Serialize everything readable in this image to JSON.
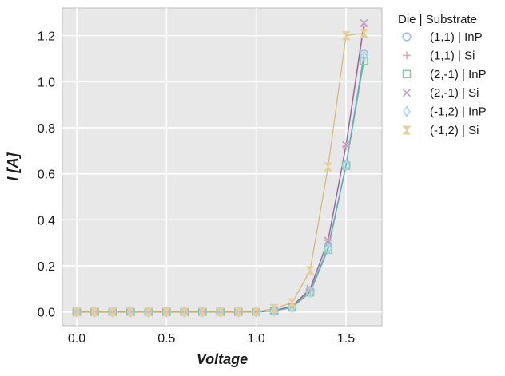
{
  "chart_data": {
    "type": "line",
    "xlabel": "Voltage",
    "ylabel": "I [A]",
    "xlim": [
      -0.08,
      1.7
    ],
    "ylim": [
      -0.06,
      1.32
    ],
    "xticks": [
      0.0,
      0.5,
      1.0,
      1.5
    ],
    "xtick_labels": [
      "0.0",
      "0.5",
      "1.0",
      "1.5"
    ],
    "yticks": [
      0.0,
      0.2,
      0.4,
      0.6,
      0.8,
      1.0,
      1.2
    ],
    "ytick_labels": [
      "0.0",
      "0.2",
      "0.4",
      "0.6",
      "0.8",
      "1.0",
      "1.2"
    ],
    "grid": true,
    "background": "#e8e8e8",
    "legend_title": "Die | Substrate",
    "legend_position": "outside-right",
    "x": [
      0.0,
      0.1,
      0.2,
      0.3,
      0.4,
      0.5,
      0.6,
      0.7,
      0.8,
      0.9,
      1.0,
      1.1,
      1.2,
      1.3,
      1.4,
      1.5,
      1.6
    ],
    "series": [
      {
        "name": "(1,1) | InP",
        "marker": "circle",
        "color": "#9ec3d8",
        "values": [
          0,
          0,
          0,
          0,
          0,
          0,
          0,
          0,
          0,
          0,
          0,
          0.005,
          0.02,
          0.09,
          0.28,
          0.64,
          1.12
        ]
      },
      {
        "name": "(1,1) | Si",
        "marker": "plus",
        "color": "#e8a8a8",
        "values": [
          0,
          0,
          0,
          0,
          0,
          0,
          0,
          0,
          0,
          0,
          0,
          0.006,
          0.025,
          0.095,
          0.31,
          0.72,
          1.24
        ]
      },
      {
        "name": "(2,-1) | InP",
        "marker": "square",
        "color": "#8fc9a8",
        "values": [
          0,
          0,
          0,
          0,
          0,
          0,
          0,
          0,
          0,
          0,
          0,
          0.005,
          0.02,
          0.085,
          0.27,
          0.635,
          1.09
        ]
      },
      {
        "name": "(2,-1) | Si",
        "marker": "x",
        "color": "#b8a0cc",
        "values": [
          0,
          0,
          0,
          0,
          0,
          0,
          0,
          0,
          0,
          0,
          0,
          0.006,
          0.025,
          0.1,
          0.31,
          0.725,
          1.255
        ]
      },
      {
        "name": "(-1,2) | InP",
        "marker": "diamond",
        "color": "#a8d8e8",
        "values": [
          0,
          0,
          0,
          0,
          0,
          0,
          0,
          0,
          0,
          0,
          0,
          0.005,
          0.02,
          0.085,
          0.275,
          0.635,
          1.11
        ]
      },
      {
        "name": "(-1,2) | Si",
        "marker": "hourglass",
        "color": "#e8cf98",
        "values": [
          0,
          0,
          0,
          0,
          0,
          0,
          0,
          0,
          0,
          0,
          0,
          0.015,
          0.04,
          0.18,
          0.63,
          1.2,
          1.21
        ]
      }
    ],
    "line_colors": [
      "#6baed6",
      "#d98b8b",
      "#6cbf95",
      "#8c5c9e",
      "#5aaac0",
      "#d4b56a"
    ]
  }
}
